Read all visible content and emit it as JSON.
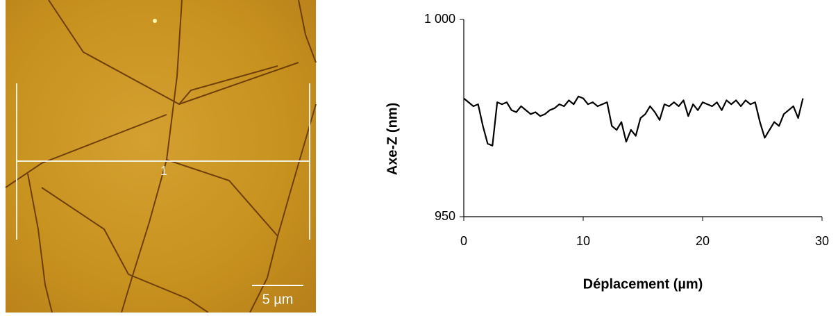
{
  "image": {
    "line_label": "1",
    "scale_bar": "5 µm"
  },
  "chart_data": {
    "type": "line",
    "x_label": "Déplacement (µm)",
    "y_label": "Axe-Z (nm)",
    "xlim": [
      0,
      30
    ],
    "xticks": [
      0,
      10,
      20,
      30
    ],
    "ylim": [
      950,
      1000
    ],
    "yticks": [
      950,
      {
        "value": 1000,
        "label": "1 000"
      }
    ],
    "grid": false,
    "series": [
      {
        "color": "#000000",
        "x": [
          0,
          0.4,
          0.8,
          1.2,
          1.6,
          2.0,
          2.4,
          2.8,
          3.2,
          3.6,
          4.0,
          4.4,
          4.8,
          5.2,
          5.6,
          6.0,
          6.4,
          6.8,
          7.2,
          7.6,
          8.0,
          8.4,
          8.8,
          9.2,
          9.6,
          10.0,
          10.4,
          10.8,
          11.2,
          11.6,
          12.0,
          12.4,
          12.8,
          13.2,
          13.6,
          14.0,
          14.4,
          14.8,
          15.2,
          15.6,
          16.0,
          16.4,
          16.8,
          17.2,
          17.6,
          18.0,
          18.4,
          18.8,
          19.2,
          19.6,
          20.0,
          20.4,
          20.8,
          21.2,
          21.6,
          22.0,
          22.4,
          22.8,
          23.2,
          23.6,
          24.0,
          24.4,
          24.8,
          25.2,
          25.6,
          26.0,
          26.4,
          26.8,
          27.2,
          27.6,
          28.0,
          28.4
        ],
        "values": [
          980,
          979,
          978,
          978.5,
          973,
          968.5,
          968,
          979,
          978.5,
          979,
          977,
          976.5,
          978,
          977,
          976,
          976.5,
          975.5,
          976,
          977,
          977.5,
          978.5,
          978,
          979.5,
          978.5,
          980.5,
          980,
          978.5,
          979,
          978,
          978.5,
          979,
          973,
          972,
          974,
          969,
          972,
          970.5,
          975,
          976,
          978,
          976.5,
          974.5,
          978.5,
          978,
          979,
          978,
          979.5,
          975.5,
          978.5,
          977,
          979,
          978.5,
          978,
          979,
          977,
          979.5,
          978.5,
          979.5,
          978,
          979.5,
          978.5,
          979,
          974,
          970,
          972,
          974,
          973,
          976,
          977,
          978,
          975,
          980
        ]
      }
    ]
  }
}
